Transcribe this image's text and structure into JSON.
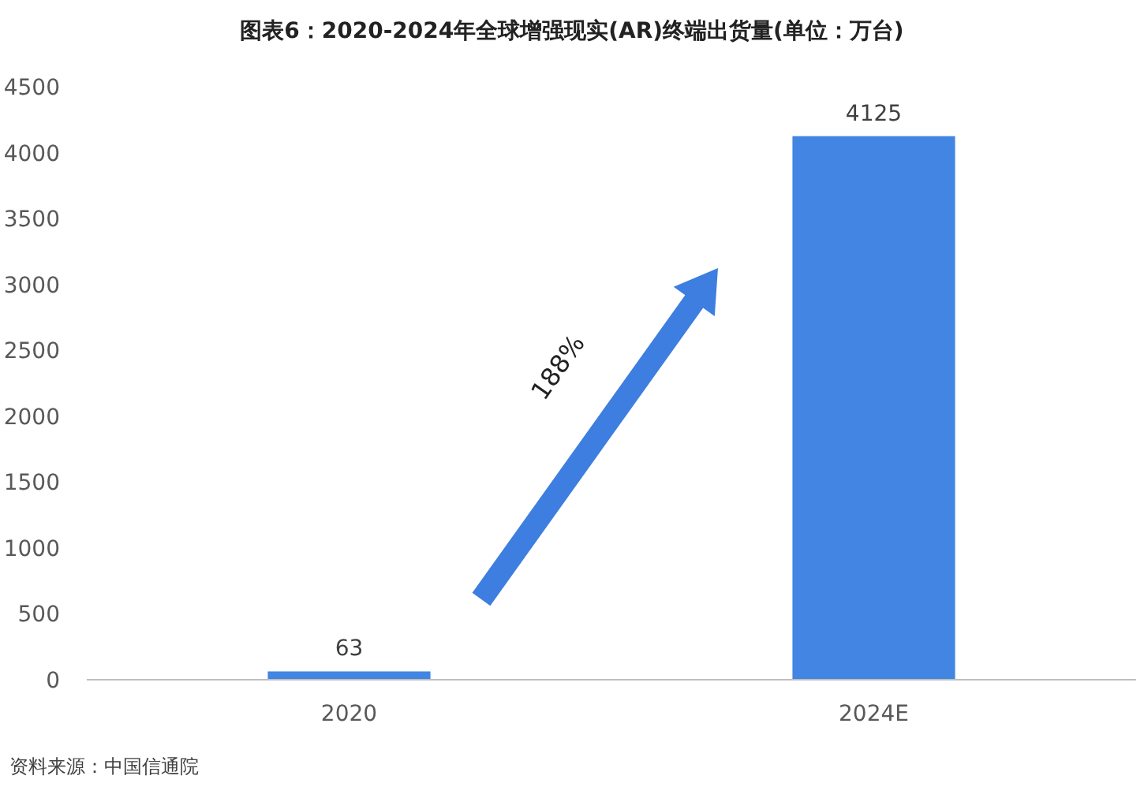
{
  "chart_data": {
    "type": "bar",
    "title": "图表6：2020-2024年全球增强现实(AR)终端出货量(单位：万台)",
    "categories": [
      "2020",
      "2024E"
    ],
    "values": [
      63,
      4125
    ],
    "color": "#4285e3",
    "data_labels": true,
    "ylim": [
      0,
      4500
    ],
    "yticks": [
      0,
      500,
      1000,
      1500,
      2000,
      2500,
      3000,
      3500,
      4000,
      4500
    ],
    "annotations": [
      "188%",
      "资料来源：中国信通院"
    ]
  }
}
